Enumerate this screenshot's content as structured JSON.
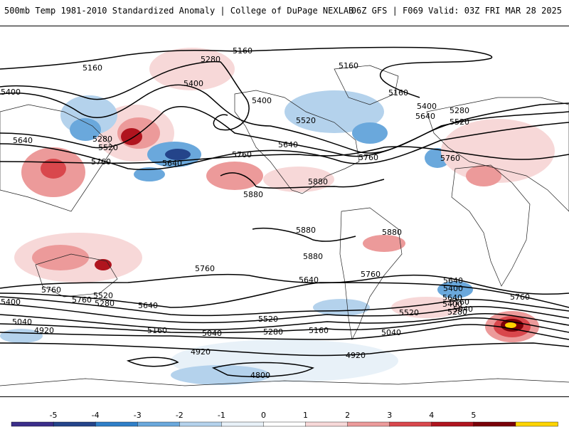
{
  "header": {
    "left_title": "500mb Temp 1981-2010 Standardized Anomaly | College of DuPage NEXLAB",
    "right_title": "06Z GFS | F069 Valid: 03Z FRI MAR 28 2025"
  },
  "colorbar": {
    "labels": [
      "-5",
      "-4",
      "-3",
      "-2",
      "-1",
      "0",
      "1",
      "2",
      "3",
      "4",
      "5"
    ],
    "colors": [
      "#3b2e8a",
      "#24448a",
      "#2f7fc8",
      "#6aa8dc",
      "#b4d2ec",
      "#e8f1f8",
      "#ffffff",
      "#f7d8d8",
      "#ec9a9a",
      "#d9474c",
      "#b0141e",
      "#7a0008",
      "#ffd400"
    ]
  },
  "contour_labels": [
    {
      "text": "5160"
    },
    {
      "text": "5280"
    },
    {
      "text": "5160"
    },
    {
      "text": "5400"
    },
    {
      "text": "5400"
    },
    {
      "text": "5280"
    },
    {
      "text": "5520"
    },
    {
      "text": "5640"
    },
    {
      "text": "5760"
    },
    {
      "text": "5400"
    },
    {
      "text": "5520"
    },
    {
      "text": "5640"
    },
    {
      "text": "5760"
    },
    {
      "text": "5640"
    },
    {
      "text": "5760"
    },
    {
      "text": "5880"
    },
    {
      "text": "5880"
    },
    {
      "text": "5880"
    },
    {
      "text": "5880"
    },
    {
      "text": "5880"
    },
    {
      "text": "5160"
    },
    {
      "text": "5160"
    },
    {
      "text": "5400"
    },
    {
      "text": "5640"
    },
    {
      "text": "5280"
    },
    {
      "text": "5520"
    },
    {
      "text": "5760"
    },
    {
      "text": "5760"
    },
    {
      "text": "5760"
    },
    {
      "text": "5760"
    },
    {
      "text": "5640"
    },
    {
      "text": "5760"
    },
    {
      "text": "5640"
    },
    {
      "text": "5400"
    },
    {
      "text": "5520"
    },
    {
      "text": "5280"
    },
    {
      "text": "5400"
    },
    {
      "text": "5640"
    },
    {
      "text": "5040"
    },
    {
      "text": "4920"
    },
    {
      "text": "5160"
    },
    {
      "text": "5040"
    },
    {
      "text": "5520"
    },
    {
      "text": "5280"
    },
    {
      "text": "5160"
    },
    {
      "text": "5520"
    },
    {
      "text": "5040"
    },
    {
      "text": "5640"
    },
    {
      "text": "5400"
    },
    {
      "text": "5280"
    },
    {
      "text": "5160"
    },
    {
      "text": "5040"
    },
    {
      "text": "4920"
    },
    {
      "text": "4920"
    },
    {
      "text": "4800"
    },
    {
      "text": "5760"
    }
  ]
}
